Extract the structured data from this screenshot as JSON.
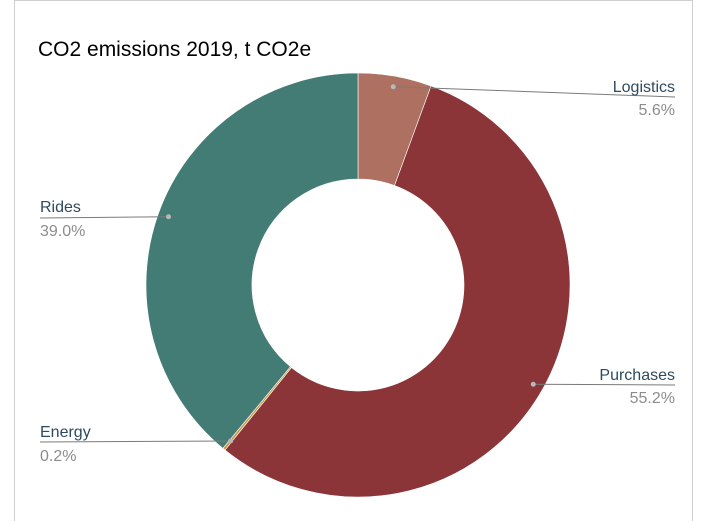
{
  "chart_data": {
    "type": "pie",
    "donut": true,
    "title": "CO2 emissions 2019, t CO2e",
    "legend": "none",
    "slices": [
      {
        "label": "Logistics",
        "value": 5.6,
        "value_label": "5.6%",
        "color": "#ae7060"
      },
      {
        "label": "Purchases",
        "value": 55.2,
        "value_label": "55.2%",
        "color": "#8b3539"
      },
      {
        "label": "Energy",
        "value": 0.2,
        "value_label": "0.2%",
        "color": "#c89a45"
      },
      {
        "label": "Rides",
        "value": 39.0,
        "value_label": "39.0%",
        "color": "#437b75"
      }
    ]
  }
}
